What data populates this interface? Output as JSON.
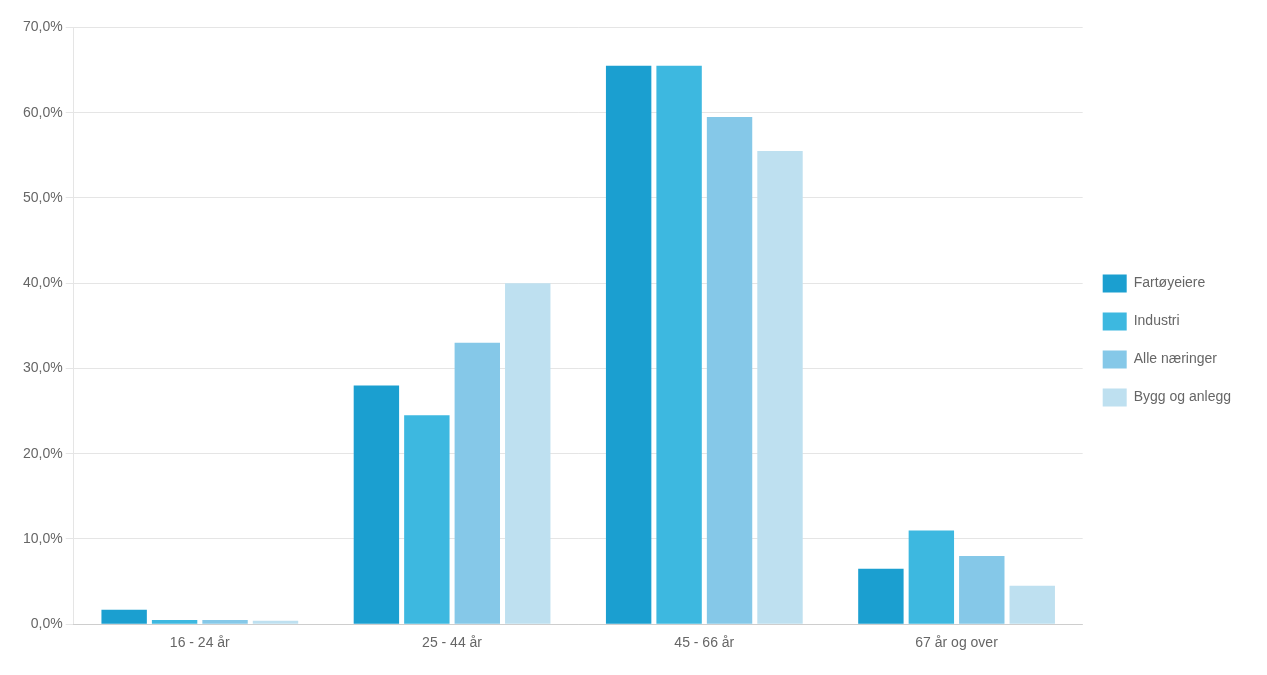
{
  "chart_data": {
    "type": "bar",
    "categories": [
      "16 - 24 år",
      "25 - 44 år",
      "45 - 66 år",
      "67 år og over"
    ],
    "series": [
      {
        "name": "Fartøyeiere",
        "color": "#1b9fd0",
        "values": [
          1.7,
          28.0,
          65.5,
          6.5
        ]
      },
      {
        "name": "Industri",
        "color": "#3db8e0",
        "values": [
          0.5,
          24.5,
          65.5,
          11.0
        ]
      },
      {
        "name": "Alle næringer",
        "color": "#85c8e8",
        "values": [
          0.5,
          33.0,
          59.5,
          8.0
        ]
      },
      {
        "name": "Bygg og anlegg",
        "color": "#bee0f0",
        "values": [
          0.4,
          40.0,
          55.5,
          4.5
        ]
      }
    ],
    "ylim": [
      0,
      70.0
    ],
    "yticks": [
      {
        "value": 0.0,
        "label": "0,0%"
      },
      {
        "value": 10.0,
        "label": "10,0%"
      },
      {
        "value": 20.0,
        "label": "20,0%"
      },
      {
        "value": 30.0,
        "label": "30,0%"
      },
      {
        "value": 40.0,
        "label": "40,0%"
      },
      {
        "value": 50.0,
        "label": "50,0%"
      },
      {
        "value": 60.0,
        "label": "60,0%"
      },
      {
        "value": 70.0,
        "label": "70,0%"
      }
    ],
    "grid": true,
    "legend": "right"
  }
}
